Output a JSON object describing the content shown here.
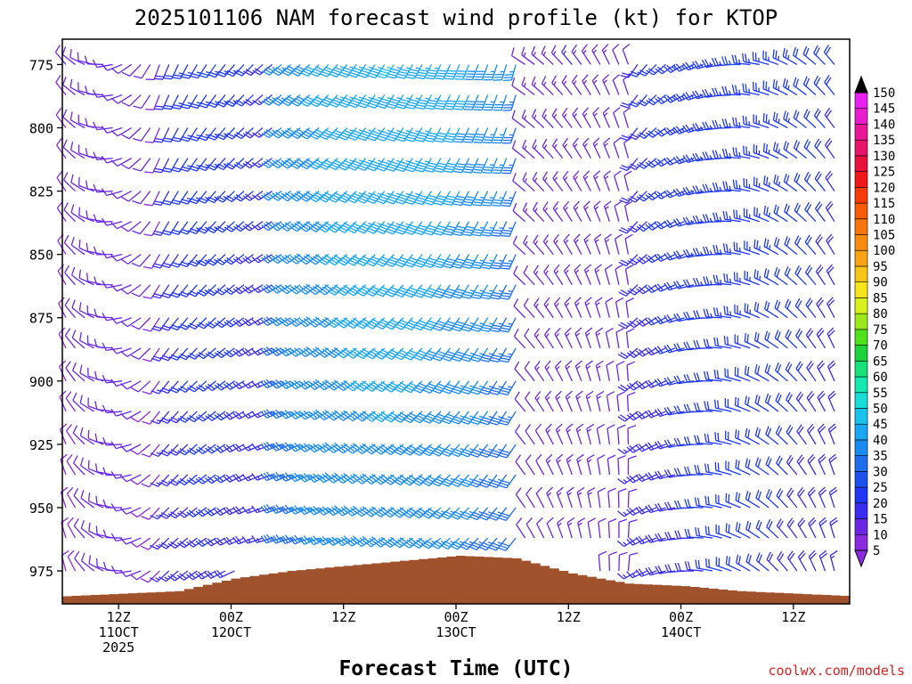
{
  "chart_data": {
    "type": "wind-barb-time-height",
    "title": "2025101106 NAM forecast wind profile (kt) for KTOP",
    "xlabel": "Forecast Time (UTC)",
    "credit": "coolwx.com/models",
    "y_axis": {
      "quantity": "pressure (hPa)",
      "ticks": [
        775,
        800,
        825,
        850,
        875,
        900,
        925,
        950,
        975
      ],
      "range": [
        765,
        988
      ],
      "inverted": true
    },
    "x_axis": {
      "ticks": [
        {
          "label": [
            "12Z",
            "11OCT",
            "2025"
          ],
          "hour": 6
        },
        {
          "label": [
            "00Z",
            "12OCT"
          ],
          "hour": 18
        },
        {
          "label": [
            "12Z"
          ],
          "hour": 30
        },
        {
          "label": [
            "00Z",
            "13OCT"
          ],
          "hour": 42
        },
        {
          "label": [
            "12Z"
          ],
          "hour": 54
        },
        {
          "label": [
            "00Z",
            "14OCT"
          ],
          "hour": 66
        },
        {
          "label": [
            "12Z"
          ],
          "hour": 78
        }
      ],
      "range": [
        0,
        84
      ],
      "barb_interval_hours": 1
    },
    "colorbar": {
      "levels": [
        5,
        10,
        15,
        20,
        25,
        30,
        35,
        40,
        45,
        50,
        55,
        60,
        65,
        70,
        75,
        80,
        85,
        90,
        95,
        100,
        105,
        110,
        115,
        120,
        125,
        130,
        135,
        140,
        145,
        150
      ],
      "colors": [
        "#8a2be2",
        "#6a28e6",
        "#3a2cf0",
        "#2038f5",
        "#1e50f0",
        "#1e6eee",
        "#1a8cf0",
        "#19a6f2",
        "#19c2ec",
        "#18dcd8",
        "#16e6b0",
        "#18e07a",
        "#1ed23c",
        "#50e01c",
        "#9ce81c",
        "#d8f01c",
        "#f8e41a",
        "#f8c418",
        "#f8a414",
        "#f88a10",
        "#f8760c",
        "#f85c0a",
        "#f83a08",
        "#f01818",
        "#e8123c",
        "#e8146a",
        "#e81898",
        "#e81ccc",
        "#e820f0",
        "#000000"
      ],
      "terrain_color": "#a0522d"
    },
    "pressure_levels": [
      775,
      787,
      800,
      812,
      825,
      837,
      850,
      862,
      875,
      887,
      900,
      912,
      925,
      937,
      950,
      962,
      975
    ],
    "surface_pressure": {
      "hours": [
        0,
        6,
        12,
        18,
        24,
        30,
        36,
        42,
        48,
        54,
        60,
        66,
        72,
        78,
        84
      ],
      "values": [
        985,
        984,
        983,
        978,
        975,
        973,
        971,
        969,
        970,
        976,
        980,
        981,
        983,
        984,
        985
      ]
    },
    "wind": {
      "segments": [
        {
          "from_hour": 0,
          "to_hour": 10,
          "speed_kt": [
            8,
            12
          ],
          "direction_deg": [
            320,
            200
          ]
        },
        {
          "from_hour": 10,
          "to_hour": 22,
          "speed_kt": [
            10,
            25
          ],
          "direction_deg": [
            200,
            230
          ]
        },
        {
          "from_hour": 22,
          "to_hour": 48,
          "speed_kt": [
            25,
            45
          ],
          "direction_deg": [
            230,
            195
          ]
        },
        {
          "from_hour": 48,
          "to_hour": 60,
          "speed_kt": [
            8,
            15
          ],
          "direction_deg": [
            300,
            340
          ]
        },
        {
          "from_hour": 60,
          "to_hour": 84,
          "speed_kt": [
            12,
            25
          ],
          "direction_deg": [
            210,
            330
          ]
        }
      ]
    }
  }
}
